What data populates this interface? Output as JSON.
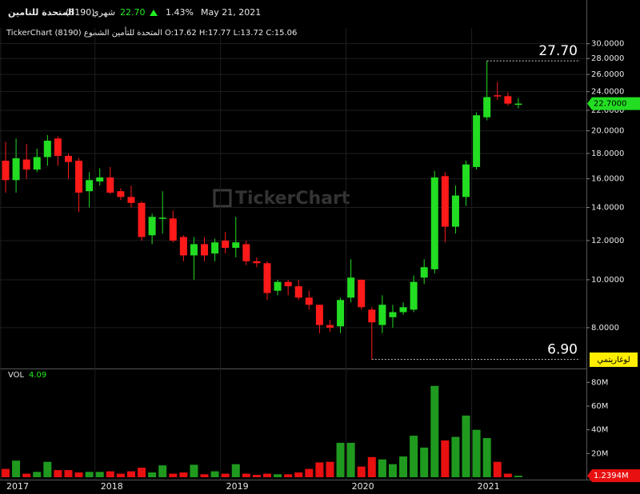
{
  "header": {
    "name": "المتحدة للتامين",
    "code": "(8190)",
    "period": "شهري",
    "price": "22.70",
    "change": "1.43%",
    "date": "May 21, 2021",
    "info": "TickerChart المتحدة للتأمين الشموع (8190) O:17.62 H:17.77 L:13.72 C:15.06",
    "watermark": "TickerChart"
  },
  "chart_data": [
    {
      "type": "candlestick",
      "log_scale": true,
      "grid": true,
      "up_color": "#22dd22",
      "down_color": "#ff1a1a",
      "categories": [
        "2017",
        null,
        null,
        null,
        null,
        null,
        null,
        null,
        null,
        "2018",
        null,
        null,
        null,
        null,
        null,
        null,
        null,
        null,
        null,
        null,
        null,
        "2019",
        null,
        null,
        null,
        null,
        null,
        null,
        null,
        null,
        null,
        null,
        null,
        "2020",
        null,
        null,
        null,
        null,
        null,
        null,
        null,
        null,
        null,
        null,
        null,
        "2021",
        null,
        null,
        null,
        null
      ],
      "open": [
        17.4,
        15.9,
        17.5,
        16.7,
        17.7,
        19.3,
        17.8,
        17.4,
        15.1,
        15.8,
        16.1,
        15.1,
        14.7,
        14.3,
        12.3,
        13.3,
        13.3,
        12.2,
        11.2,
        11.8,
        11.3,
        12.0,
        11.6,
        11.8,
        10.9,
        10.8,
        9.5,
        9.9,
        9.7,
        9.2,
        8.9,
        8.1,
        8.05,
        9.2,
        10.0,
        8.7,
        8.1,
        8.4,
        8.6,
        8.7,
        10.1,
        10.5,
        16.2,
        12.8,
        14.7,
        16.9,
        21.3,
        23.6,
        23.5,
        22.65
      ],
      "high": [
        19.0,
        19.3,
        18.8,
        18.4,
        19.6,
        19.5,
        18.0,
        17.6,
        16.5,
        16.8,
        16.9,
        15.3,
        15.5,
        14.4,
        13.6,
        15.1,
        13.8,
        12.3,
        12.2,
        12.2,
        12.1,
        12.5,
        13.4,
        12.0,
        11.1,
        10.9,
        10.0,
        10.0,
        10.0,
        9.5,
        8.9,
        8.3,
        9.2,
        11.0,
        10.0,
        8.8,
        9.3,
        8.9,
        9.0,
        10.2,
        11.0,
        16.6,
        16.5,
        15.5,
        17.4,
        21.8,
        27.7,
        25.1,
        23.9,
        23.3
      ],
      "low": [
        15.0,
        15.0,
        16.0,
        16.5,
        17.0,
        17.0,
        16.0,
        13.7,
        14.0,
        15.5,
        14.9,
        14.5,
        14.0,
        12.0,
        11.8,
        12.4,
        11.9,
        10.9,
        10.0,
        10.9,
        10.9,
        11.3,
        11.1,
        10.7,
        10.6,
        9.1,
        9.3,
        9.3,
        9.1,
        8.7,
        7.8,
        7.85,
        7.8,
        9.0,
        8.7,
        6.9,
        7.8,
        8.0,
        8.5,
        8.6,
        9.8,
        10.3,
        11.9,
        12.4,
        14.1,
        16.7,
        21.0,
        23.1,
        22.5,
        22.2
      ],
      "close": [
        15.9,
        17.6,
        16.7,
        17.7,
        19.1,
        17.8,
        17.3,
        15.0,
        15.9,
        16.1,
        15.0,
        14.7,
        14.3,
        12.2,
        13.4,
        13.35,
        12.0,
        11.2,
        11.8,
        11.2,
        11.9,
        11.6,
        11.9,
        10.9,
        10.8,
        9.4,
        9.9,
        9.7,
        9.2,
        8.9,
        8.1,
        8.0,
        9.1,
        10.1,
        8.8,
        8.2,
        8.9,
        8.6,
        8.8,
        9.9,
        10.6,
        16.1,
        12.8,
        14.8,
        17.1,
        21.5,
        23.4,
        23.5,
        22.7,
        22.7
      ],
      "ylim": [
        6.64,
        31.1
      ],
      "yticks": [
        {
          "value": 8,
          "label": "8.0000"
        },
        {
          "value": 10,
          "label": "10.0000"
        },
        {
          "value": 12,
          "label": "12.0000"
        },
        {
          "value": 14,
          "label": "14.0000"
        },
        {
          "value": 16,
          "label": "16.0000"
        },
        {
          "value": 18,
          "label": "18.0000"
        },
        {
          "value": 20,
          "label": "20.0000"
        },
        {
          "value": 22,
          "label": "22.0000"
        },
        {
          "value": 24,
          "label": "24.0000"
        },
        {
          "value": 26,
          "label": "26.0000"
        },
        {
          "value": 28,
          "label": "28.0000"
        },
        {
          "value": 30,
          "label": "30.0000"
        }
      ],
      "high_annotation": {
        "value": 27.7,
        "label": "27.70"
      },
      "low_annotation": {
        "value": 6.9,
        "label": "6.90"
      },
      "last_price_tag": {
        "value": 22.7,
        "label": "22.7000"
      },
      "scale_label": "لوغاريتمي"
    },
    {
      "type": "bar",
      "title": "VOL",
      "subtitle": "4.09",
      "up_color": "#1f9a1f",
      "down_color": "#e81010",
      "values": [
        7,
        14,
        3,
        4.5,
        13,
        6,
        6,
        4,
        4.5,
        4.5,
        5,
        3,
        5,
        8,
        4,
        10,
        3,
        4,
        10.5,
        2.5,
        5,
        3,
        11,
        3,
        2,
        3,
        2.5,
        2.5,
        4,
        7,
        12.5,
        13,
        29,
        29,
        9,
        17,
        15,
        11,
        17.5,
        35,
        25,
        77,
        31,
        34,
        52,
        40,
        33,
        13,
        3,
        1.2394
      ],
      "ylim": [
        0,
        89
      ],
      "yticks": [
        {
          "value": 20,
          "label": "20M"
        },
        {
          "value": 40,
          "label": "40M"
        },
        {
          "value": 60,
          "label": "60M"
        },
        {
          "value": 80,
          "label": "80M"
        }
      ],
      "last_value_tag": {
        "value": 1.2394,
        "label": "1.2394M"
      }
    }
  ]
}
